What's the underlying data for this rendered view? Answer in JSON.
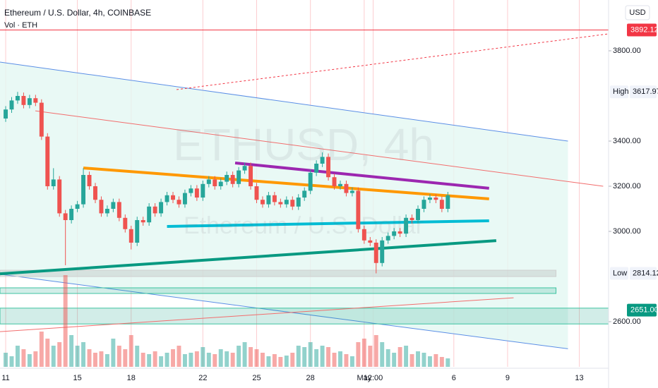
{
  "chart_data": {
    "type": "candlestick",
    "title": "Ethereum / U.S. Dollar, 4h, COINBASE",
    "subtitle": "Vol · ETH",
    "currency": "USD",
    "watermark": [
      "ETHUSD, 4h",
      "Ethereum / U.S. Dollar"
    ],
    "up_color": "#26a69a",
    "down_color": "#ef5350",
    "open": [
      3500,
      3540,
      3580,
      3600,
      3560,
      3590,
      3570,
      3420,
      3200,
      3230,
      3080,
      3050,
      3100,
      3120,
      3250,
      3200,
      3140,
      3080,
      3100,
      3130,
      3060,
      3010,
      2950,
      3050,
      3040,
      3110,
      3080,
      3130,
      3160,
      3140,
      3120,
      3170,
      3190,
      3150,
      3210,
      3230,
      3200,
      3220,
      3250,
      3210,
      3270,
      3290,
      3200,
      3140,
      3120,
      3160,
      3130,
      3120,
      3140,
      3110,
      3150,
      3180,
      3260,
      3300,
      3330,
      3240,
      3200,
      3210,
      3170,
      3180,
      3010,
      2960,
      2950,
      2860,
      2960,
      2980,
      3000,
      2990,
      3060,
      3050,
      3100,
      3140,
      3150,
      3140,
      3100
    ],
    "high": [
      3555,
      3595,
      3617.97,
      3615,
      3605,
      3605,
      3585,
      3435,
      3280,
      3245,
      3095,
      3115,
      3135,
      3280,
      3265,
      3215,
      3155,
      3115,
      3145,
      3145,
      3075,
      3025,
      3065,
      3065,
      3125,
      3125,
      3145,
      3175,
      3175,
      3155,
      3185,
      3205,
      3205,
      3225,
      3245,
      3245,
      3235,
      3265,
      3265,
      3285,
      3305,
      3305,
      3215,
      3155,
      3175,
      3175,
      3145,
      3155,
      3155,
      3165,
      3195,
      3275,
      3315,
      3350,
      3345,
      3255,
      3225,
      3225,
      3195,
      3195,
      3025,
      2975,
      2965,
      2975,
      2995,
      3015,
      3015,
      3075,
      3075,
      3115,
      3155,
      3165,
      3165,
      3155,
      3175
    ],
    "low": [
      3485,
      3525,
      3565,
      3545,
      3545,
      3555,
      3405,
      3185,
      3185,
      3065,
      2850,
      3035,
      3085,
      3105,
      3185,
      3125,
      3065,
      3065,
      3085,
      3045,
      2995,
      2920,
      2935,
      3025,
      3025,
      3065,
      3065,
      3115,
      3125,
      3105,
      3105,
      3155,
      3135,
      3135,
      3195,
      3185,
      3185,
      3205,
      3195,
      3195,
      3255,
      3185,
      3125,
      3105,
      3105,
      3115,
      3105,
      3105,
      3095,
      3095,
      3135,
      3165,
      3245,
      3285,
      3225,
      3185,
      3185,
      3155,
      3155,
      2995,
      2945,
      2935,
      2814.12,
      2845,
      2945,
      2965,
      2975,
      2975,
      3035,
      3035,
      3085,
      3125,
      3125,
      3085,
      3085
    ],
    "close": [
      3540,
      3580,
      3600,
      3560,
      3590,
      3570,
      3420,
      3200,
      3230,
      3080,
      3050,
      3100,
      3120,
      3250,
      3200,
      3140,
      3080,
      3100,
      3130,
      3060,
      3010,
      2950,
      3050,
      3040,
      3110,
      3080,
      3130,
      3160,
      3140,
      3120,
      3170,
      3190,
      3150,
      3210,
      3230,
      3200,
      3220,
      3250,
      3210,
      3270,
      3290,
      3200,
      3140,
      3120,
      3160,
      3130,
      3120,
      3140,
      3110,
      3150,
      3180,
      3260,
      3300,
      3330,
      3240,
      3200,
      3210,
      3170,
      3180,
      3010,
      2960,
      2950,
      2860,
      2960,
      2980,
      3000,
      2990,
      3060,
      3050,
      3100,
      3140,
      3150,
      3140,
      3100,
      3160
    ],
    "volume": [
      20,
      15,
      30,
      25,
      18,
      22,
      50,
      40,
      30,
      35,
      130,
      45,
      30,
      35,
      25,
      20,
      22,
      18,
      40,
      30,
      25,
      45,
      30,
      20,
      18,
      22,
      15,
      20,
      25,
      30,
      18,
      20,
      22,
      28,
      20,
      18,
      25,
      22,
      20,
      30,
      35,
      28,
      25,
      20,
      15,
      18,
      14,
      16,
      20,
      30,
      28,
      35,
      25,
      30,
      28,
      20,
      22,
      18,
      15,
      35,
      40,
      30,
      45,
      35,
      25,
      20,
      28,
      30,
      18,
      22,
      20,
      15,
      18,
      14,
      12
    ],
    "xlim": [
      -0.95,
      100.9
    ],
    "ylim": [
      2400,
      4025
    ],
    "xticks": [
      {
        "value": 0,
        "label": "11"
      },
      {
        "value": 12,
        "label": "15"
      },
      {
        "value": 21,
        "label": "18"
      },
      {
        "value": 33,
        "label": "22"
      },
      {
        "value": 42,
        "label": "25"
      },
      {
        "value": 51,
        "label": "28"
      },
      {
        "value": 60,
        "label": "May"
      },
      {
        "value": 61.5,
        "label": "12:00"
      },
      {
        "value": 75,
        "label": "6"
      },
      {
        "value": 84,
        "label": "9"
      },
      {
        "value": 96,
        "label": "13"
      }
    ],
    "yticks": [
      {
        "value": 3800,
        "label": "3800.00"
      },
      {
        "value": 3400,
        "label": "3400.00"
      },
      {
        "value": 3200,
        "label": "3200.00"
      },
      {
        "value": 3000,
        "label": "3000.00"
      },
      {
        "value": 2600,
        "label": "2600.00"
      }
    ],
    "price_labels": [
      {
        "value": 3892.12,
        "label": "3892.12",
        "color": "#f23645"
      },
      {
        "text": "High",
        "value": 3617.97,
        "label": "3617.97"
      },
      {
        "text": "Low",
        "value": 2814.12,
        "label": "2814.12"
      },
      {
        "value": 2651,
        "label": "2651.00",
        "color": "#089981"
      }
    ],
    "channel": {
      "color": "#5b8ee6",
      "fill": "#e3f7f3",
      "upper": [
        [
          -0.95,
          3750
        ],
        [
          94.1,
          3400
        ]
      ],
      "lower": [
        [
          -0.95,
          2810
        ],
        [
          94.1,
          2480
        ]
      ]
    },
    "lines": [
      {
        "points": [
          [
            -0.95,
            3892.12
          ],
          [
            100.9,
            3892.12
          ]
        ],
        "color": "#f23645",
        "width": 1,
        "dash": false
      },
      {
        "points": [
          [
            4.96,
            3534
          ],
          [
            100,
            3200
          ]
        ],
        "color": "#f26d6d",
        "width": 1,
        "dash": false
      },
      {
        "points": [
          [
            28.6,
            3628
          ],
          [
            100.9,
            3875
          ]
        ],
        "color": "#f23645",
        "width": 1,
        "dash": true
      },
      {
        "points": [
          [
            -0.95,
            2556
          ],
          [
            85,
            2706
          ]
        ],
        "color": "#f26d6d",
        "width": 1,
        "dash": false
      },
      {
        "points": [
          [
            13,
            3281
          ],
          [
            80.9,
            3144
          ]
        ],
        "color": "#ff9800",
        "width": 4,
        "dash": false
      },
      {
        "points": [
          [
            38.4,
            3303
          ],
          [
            80.9,
            3191
          ]
        ],
        "color": "#9c27b0",
        "width": 4,
        "dash": false
      },
      {
        "points": [
          [
            27,
            3022
          ],
          [
            80.9,
            3047
          ]
        ],
        "color": "#00bcd4",
        "width": 4,
        "dash": false
      },
      {
        "points": [
          [
            -0.95,
            2812
          ],
          [
            82.1,
            2959
          ]
        ],
        "color": "#089981",
        "width": 4,
        "dash": false
      }
    ],
    "zones": [
      {
        "from": 2828,
        "to": 2800,
        "end": 92.1,
        "color": "rgba(160,160,160,0.25)",
        "stroke": "#cfcfcf"
      },
      {
        "from": 2750,
        "to": 2725,
        "end": 92.1,
        "color": "rgba(8,153,129,0.18)",
        "stroke": "#3cc3a0"
      },
      {
        "from": 2660,
        "to": 2590,
        "end": 100.9,
        "color": "rgba(8,153,129,0.18)",
        "stroke": "#3cc3a0"
      }
    ],
    "grid": true
  }
}
